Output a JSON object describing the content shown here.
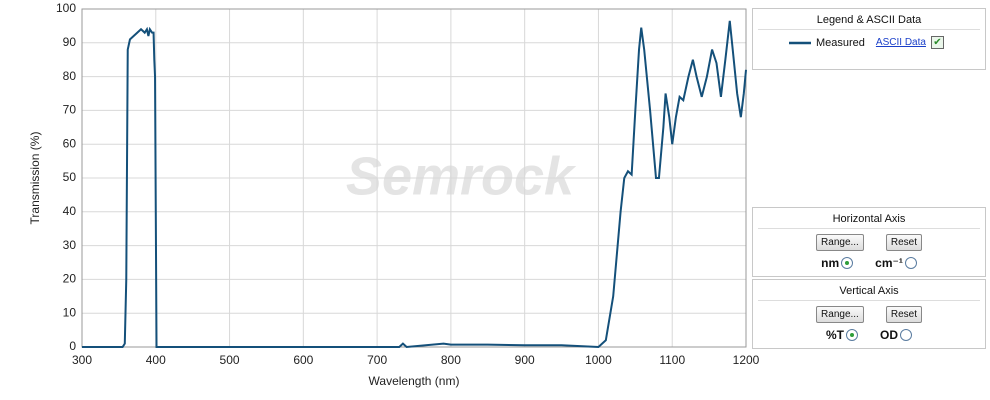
{
  "chart_data": {
    "type": "line",
    "xlabel": "Wavelength (nm)",
    "ylabel": "Transmission (%)",
    "watermark": "Semrock",
    "x": [
      300,
      355,
      358,
      360,
      362,
      365,
      370,
      375,
      380,
      385,
      388,
      390,
      392,
      395,
      397,
      398,
      399,
      400,
      401,
      500,
      730,
      735,
      740,
      790,
      800,
      850,
      900,
      950,
      1000,
      1010,
      1020,
      1030,
      1035,
      1040,
      1045,
      1050,
      1055,
      1058,
      1062,
      1070,
      1078,
      1082,
      1088,
      1091,
      1096,
      1100,
      1105,
      1110,
      1115,
      1122,
      1128,
      1133,
      1140,
      1147,
      1154,
      1160,
      1166,
      1172,
      1178,
      1182,
      1188,
      1193,
      1197,
      1200
    ],
    "series": [
      {
        "name": "Measured",
        "color": "#14507a",
        "values": [
          0,
          0,
          1,
          20,
          88,
          91,
          92,
          93,
          94,
          93,
          94,
          92,
          94,
          93,
          93,
          85,
          80,
          40,
          0,
          0,
          0,
          1,
          0,
          1,
          0.7,
          0.7,
          0.5,
          0.5,
          0,
          2,
          15,
          40,
          50,
          52,
          51,
          70,
          88,
          94.5,
          88,
          70,
          50,
          50,
          65,
          75,
          68,
          60,
          68,
          74,
          73,
          80,
          85,
          80,
          74,
          80,
          88,
          84,
          74,
          85,
          96.5,
          88,
          75,
          68,
          75,
          82
        ]
      }
    ],
    "xlim": [
      300,
      1200
    ],
    "ylim": [
      0,
      100
    ],
    "xticks": [
      300,
      400,
      500,
      600,
      700,
      800,
      900,
      1000,
      1100,
      1200
    ],
    "yticks": [
      0,
      10,
      20,
      30,
      40,
      50,
      60,
      70,
      80,
      90,
      100
    ],
    "grid": true
  },
  "panels": {
    "legend": {
      "title": "Legend & ASCII Data",
      "link": "ASCII Data"
    },
    "horizontal": {
      "title": "Horizontal Axis",
      "range": "Range...",
      "reset": "Reset",
      "opt1": "nm",
      "opt2": "cm⁻¹"
    },
    "vertical": {
      "title": "Vertical  Axis",
      "range": "Range...",
      "reset": "Reset",
      "opt1": "%T",
      "opt2": "OD"
    }
  }
}
